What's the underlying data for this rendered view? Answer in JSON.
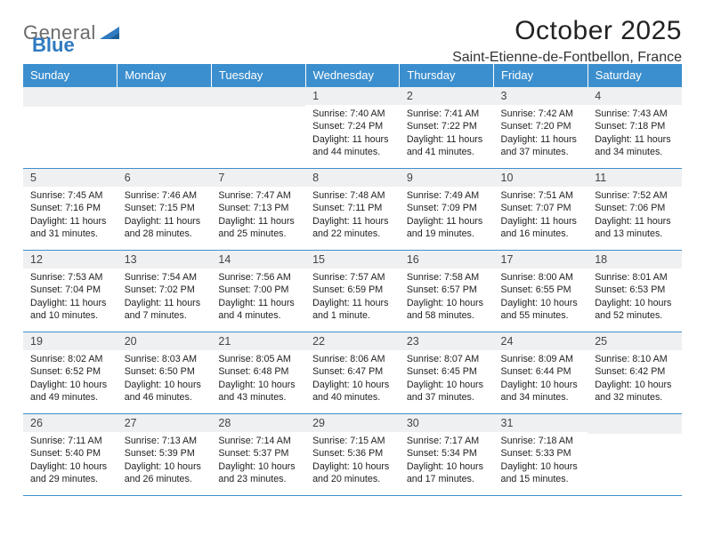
{
  "logo": {
    "word1": "General",
    "word2": "Blue"
  },
  "title": "October 2025",
  "location": "Saint-Etienne-de-Fontbellon, France",
  "colors": {
    "header_bg": "#3c8fce",
    "header_text": "#ffffff",
    "band_bg": "#eef0f1",
    "rule": "#3c8fce",
    "logo_gray": "#6b6b6b",
    "logo_blue": "#2f7ac0"
  },
  "day_names": [
    "Sunday",
    "Monday",
    "Tuesday",
    "Wednesday",
    "Thursday",
    "Friday",
    "Saturday"
  ],
  "weeks": [
    [
      null,
      null,
      null,
      {
        "n": "1",
        "sunrise": "7:40 AM",
        "sunset": "7:24 PM",
        "daylight": "11 hours and 44 minutes."
      },
      {
        "n": "2",
        "sunrise": "7:41 AM",
        "sunset": "7:22 PM",
        "daylight": "11 hours and 41 minutes."
      },
      {
        "n": "3",
        "sunrise": "7:42 AM",
        "sunset": "7:20 PM",
        "daylight": "11 hours and 37 minutes."
      },
      {
        "n": "4",
        "sunrise": "7:43 AM",
        "sunset": "7:18 PM",
        "daylight": "11 hours and 34 minutes."
      }
    ],
    [
      {
        "n": "5",
        "sunrise": "7:45 AM",
        "sunset": "7:16 PM",
        "daylight": "11 hours and 31 minutes."
      },
      {
        "n": "6",
        "sunrise": "7:46 AM",
        "sunset": "7:15 PM",
        "daylight": "11 hours and 28 minutes."
      },
      {
        "n": "7",
        "sunrise": "7:47 AM",
        "sunset": "7:13 PM",
        "daylight": "11 hours and 25 minutes."
      },
      {
        "n": "8",
        "sunrise": "7:48 AM",
        "sunset": "7:11 PM",
        "daylight": "11 hours and 22 minutes."
      },
      {
        "n": "9",
        "sunrise": "7:49 AM",
        "sunset": "7:09 PM",
        "daylight": "11 hours and 19 minutes."
      },
      {
        "n": "10",
        "sunrise": "7:51 AM",
        "sunset": "7:07 PM",
        "daylight": "11 hours and 16 minutes."
      },
      {
        "n": "11",
        "sunrise": "7:52 AM",
        "sunset": "7:06 PM",
        "daylight": "11 hours and 13 minutes."
      }
    ],
    [
      {
        "n": "12",
        "sunrise": "7:53 AM",
        "sunset": "7:04 PM",
        "daylight": "11 hours and 10 minutes."
      },
      {
        "n": "13",
        "sunrise": "7:54 AM",
        "sunset": "7:02 PM",
        "daylight": "11 hours and 7 minutes."
      },
      {
        "n": "14",
        "sunrise": "7:56 AM",
        "sunset": "7:00 PM",
        "daylight": "11 hours and 4 minutes."
      },
      {
        "n": "15",
        "sunrise": "7:57 AM",
        "sunset": "6:59 PM",
        "daylight": "11 hours and 1 minute."
      },
      {
        "n": "16",
        "sunrise": "7:58 AM",
        "sunset": "6:57 PM",
        "daylight": "10 hours and 58 minutes."
      },
      {
        "n": "17",
        "sunrise": "8:00 AM",
        "sunset": "6:55 PM",
        "daylight": "10 hours and 55 minutes."
      },
      {
        "n": "18",
        "sunrise": "8:01 AM",
        "sunset": "6:53 PM",
        "daylight": "10 hours and 52 minutes."
      }
    ],
    [
      {
        "n": "19",
        "sunrise": "8:02 AM",
        "sunset": "6:52 PM",
        "daylight": "10 hours and 49 minutes."
      },
      {
        "n": "20",
        "sunrise": "8:03 AM",
        "sunset": "6:50 PM",
        "daylight": "10 hours and 46 minutes."
      },
      {
        "n": "21",
        "sunrise": "8:05 AM",
        "sunset": "6:48 PM",
        "daylight": "10 hours and 43 minutes."
      },
      {
        "n": "22",
        "sunrise": "8:06 AM",
        "sunset": "6:47 PM",
        "daylight": "10 hours and 40 minutes."
      },
      {
        "n": "23",
        "sunrise": "8:07 AM",
        "sunset": "6:45 PM",
        "daylight": "10 hours and 37 minutes."
      },
      {
        "n": "24",
        "sunrise": "8:09 AM",
        "sunset": "6:44 PM",
        "daylight": "10 hours and 34 minutes."
      },
      {
        "n": "25",
        "sunrise": "8:10 AM",
        "sunset": "6:42 PM",
        "daylight": "10 hours and 32 minutes."
      }
    ],
    [
      {
        "n": "26",
        "sunrise": "7:11 AM",
        "sunset": "5:40 PM",
        "daylight": "10 hours and 29 minutes."
      },
      {
        "n": "27",
        "sunrise": "7:13 AM",
        "sunset": "5:39 PM",
        "daylight": "10 hours and 26 minutes."
      },
      {
        "n": "28",
        "sunrise": "7:14 AM",
        "sunset": "5:37 PM",
        "daylight": "10 hours and 23 minutes."
      },
      {
        "n": "29",
        "sunrise": "7:15 AM",
        "sunset": "5:36 PM",
        "daylight": "10 hours and 20 minutes."
      },
      {
        "n": "30",
        "sunrise": "7:17 AM",
        "sunset": "5:34 PM",
        "daylight": "10 hours and 17 minutes."
      },
      {
        "n": "31",
        "sunrise": "7:18 AM",
        "sunset": "5:33 PM",
        "daylight": "10 hours and 15 minutes."
      },
      null
    ]
  ],
  "labels": {
    "sunrise": "Sunrise:",
    "sunset": "Sunset:",
    "daylight": "Daylight:"
  }
}
